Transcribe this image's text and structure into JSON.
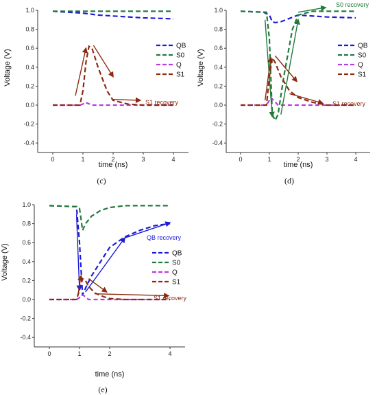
{
  "colors": {
    "QB": "#1c1cd6",
    "S0": "#1f7a3a",
    "Q": "#b43ce0",
    "S1": "#8b2a10"
  },
  "chart_data": [
    {
      "type": "line",
      "caption": "(c)",
      "xlabel": "time (ns)",
      "ylabel": "Voltage (V)",
      "xlim": [
        -0.5,
        4.5
      ],
      "ylim": [
        -0.5,
        1.0
      ],
      "xticks": [
        "0",
        "1",
        "2",
        "3",
        "4"
      ],
      "yticks": [
        "-0.4",
        "-0.2",
        "0.0",
        "0.2",
        "0.4",
        "0.6",
        "0.8",
        "1.0"
      ],
      "grid": false,
      "legend_position": "right",
      "legend": [
        "QB",
        "S0",
        "Q",
        "S1"
      ],
      "series": [
        {
          "name": "QB",
          "x": [
            0,
            0.5,
            1.0,
            1.5,
            2.0,
            3.0,
            4.0
          ],
          "y": [
            0.99,
            0.98,
            0.97,
            0.95,
            0.94,
            0.92,
            0.91
          ]
        },
        {
          "name": "S0",
          "x": [
            0,
            1.0,
            2.0,
            3.0,
            4.0
          ],
          "y": [
            0.99,
            0.99,
            0.99,
            0.99,
            0.99
          ]
        },
        {
          "name": "Q",
          "x": [
            0,
            0.9,
            1.0,
            1.05,
            1.15,
            1.3,
            2.0,
            3.0,
            4.0
          ],
          "y": [
            0.0,
            0.0,
            0.01,
            0.03,
            0.02,
            0.0,
            0.0,
            0.0,
            0.0
          ]
        },
        {
          "name": "S1",
          "x": [
            0,
            0.9,
            1.0,
            1.1,
            1.2,
            1.3,
            1.5,
            1.8,
            2.0,
            2.5,
            3.0,
            4.0
          ],
          "y": [
            0.0,
            0.0,
            0.15,
            0.45,
            0.62,
            0.6,
            0.4,
            0.15,
            0.05,
            0.01,
            0.0,
            0.0
          ]
        }
      ],
      "annotations": [
        {
          "text": "S1 recovery",
          "color": "S1"
        }
      ],
      "arrows": [
        {
          "color": "S1",
          "from": [
            0.75,
            0.1
          ],
          "to": [
            1.1,
            0.6
          ]
        },
        {
          "color": "S1",
          "from": [
            1.35,
            0.63
          ],
          "to": [
            2.0,
            0.3
          ]
        },
        {
          "color": "S1",
          "from": [
            1.95,
            0.06
          ],
          "to": [
            2.9,
            0.05
          ]
        }
      ]
    },
    {
      "type": "line",
      "caption": "(d)",
      "xlabel": "time (ns)",
      "ylabel": "Voltage (V)",
      "xlim": [
        -0.5,
        4.5
      ],
      "ylim": [
        -0.5,
        1.0
      ],
      "xticks": [
        "0",
        "1",
        "2",
        "3",
        "4"
      ],
      "yticks": [
        "-0.4",
        "-0.2",
        "0.0",
        "0.2",
        "0.4",
        "0.6",
        "0.8",
        "1.0"
      ],
      "grid": false,
      "legend_position": "right",
      "legend": [
        "QB",
        "S0",
        "Q",
        "S1"
      ],
      "series": [
        {
          "name": "QB",
          "x": [
            0,
            0.8,
            1.0,
            1.1,
            1.2,
            1.4,
            2.0,
            3.0,
            4.0
          ],
          "y": [
            0.99,
            0.98,
            0.95,
            0.88,
            0.87,
            0.88,
            0.95,
            0.93,
            0.92
          ]
        },
        {
          "name": "S0",
          "x": [
            0,
            0.9,
            1.0,
            1.1,
            1.2,
            1.3,
            1.5,
            1.8,
            2.0,
            2.5,
            3.0,
            4.0
          ],
          "y": [
            0.99,
            0.98,
            0.7,
            -0.1,
            -0.16,
            -0.1,
            0.3,
            0.8,
            0.95,
            0.99,
            0.99,
            0.99
          ]
        },
        {
          "name": "Q",
          "x": [
            0,
            0.9,
            1.0,
            1.05,
            1.15,
            1.3,
            2.0,
            3.0,
            4.0
          ],
          "y": [
            0.0,
            0.0,
            0.05,
            0.08,
            0.05,
            0.0,
            0.0,
            0.0,
            0.0
          ]
        },
        {
          "name": "S1",
          "x": [
            0,
            0.9,
            1.0,
            1.1,
            1.2,
            1.4,
            1.7,
            2.0,
            2.5,
            3.0,
            4.0
          ],
          "y": [
            0.0,
            0.0,
            0.3,
            0.5,
            0.45,
            0.3,
            0.15,
            0.08,
            0.03,
            0.0,
            0.0
          ]
        }
      ],
      "annotations": [
        {
          "text": "S0 recovery",
          "color": "S0"
        },
        {
          "text": "S1 recovery",
          "color": "S1"
        }
      ],
      "arrows": [
        {
          "color": "S0",
          "from": [
            0.85,
            0.9
          ],
          "to": [
            1.1,
            -0.12
          ]
        },
        {
          "color": "S0",
          "from": [
            1.4,
            -0.1
          ],
          "to": [
            2.0,
            0.9
          ]
        },
        {
          "color": "S0",
          "from": [
            2.0,
            0.98
          ],
          "to": [
            2.95,
            1.03
          ]
        },
        {
          "color": "S1",
          "from": [
            0.85,
            0.05
          ],
          "to": [
            1.05,
            0.5
          ]
        },
        {
          "color": "S1",
          "from": [
            1.2,
            0.52
          ],
          "to": [
            1.95,
            0.25
          ]
        },
        {
          "color": "S1",
          "from": [
            1.7,
            0.12
          ],
          "to": [
            2.85,
            0.02
          ]
        }
      ]
    },
    {
      "type": "line",
      "caption": "(e)",
      "xlabel": "time (ns)",
      "ylabel": "Voltage (V)",
      "xlim": [
        -0.5,
        4.5
      ],
      "ylim": [
        -0.5,
        1.0
      ],
      "xticks": [
        "0",
        "1",
        "2",
        "4"
      ],
      "yticks": [
        "-0.4",
        "-0.2",
        "0.0",
        "0.2",
        "0.4",
        "0.6",
        "0.8",
        "1.0"
      ],
      "grid": false,
      "legend_position": "right",
      "legend": [
        "QB",
        "S0",
        "Q",
        "S1"
      ],
      "series": [
        {
          "name": "QB",
          "x": [
            0,
            0.9,
            1.0,
            1.1,
            1.2,
            1.4,
            1.7,
            2.0,
            2.5,
            3.0,
            3.5,
            4.0
          ],
          "y": [
            0.99,
            0.98,
            0.6,
            0.05,
            0.12,
            0.25,
            0.4,
            0.55,
            0.66,
            0.73,
            0.78,
            0.8
          ]
        },
        {
          "name": "S0",
          "x": [
            0,
            0.9,
            1.0,
            1.05,
            1.1,
            1.2,
            1.4,
            1.7,
            2.0,
            2.5,
            3.0,
            4.0
          ],
          "y": [
            0.99,
            0.98,
            0.96,
            0.85,
            0.73,
            0.8,
            0.88,
            0.94,
            0.97,
            0.99,
            0.99,
            0.99
          ]
        },
        {
          "name": "Q",
          "x": [
            0,
            0.9,
            1.0,
            1.05,
            1.15,
            1.3,
            2.0,
            3.0,
            4.0
          ],
          "y": [
            0.0,
            0.0,
            0.02,
            0.05,
            0.04,
            0.0,
            0.0,
            0.0,
            0.0
          ]
        },
        {
          "name": "S1",
          "x": [
            0,
            0.9,
            1.0,
            1.1,
            1.2,
            1.3,
            1.5,
            1.8,
            2.0,
            2.5,
            3.0,
            4.0
          ],
          "y": [
            0.0,
            0.0,
            0.1,
            0.22,
            0.2,
            0.14,
            0.07,
            0.03,
            0.01,
            0.0,
            0.0,
            0.0
          ]
        }
      ],
      "annotations": [
        {
          "text": "QB recovery",
          "color": "QB"
        },
        {
          "text": "S1 recovery",
          "color": "S1"
        }
      ],
      "arrows": [
        {
          "color": "QB",
          "from": [
            0.9,
            0.9
          ],
          "to": [
            1.0,
            0.1
          ]
        },
        {
          "color": "QB",
          "from": [
            1.2,
            0.08
          ],
          "to": [
            2.5,
            0.65
          ]
        },
        {
          "color": "QB",
          "from": [
            2.5,
            0.65
          ],
          "to": [
            4.0,
            0.81
          ]
        },
        {
          "color": "S1",
          "from": [
            0.95,
            0.05
          ],
          "to": [
            1.05,
            0.25
          ]
        },
        {
          "color": "S1",
          "from": [
            1.3,
            0.22
          ],
          "to": [
            1.9,
            0.08
          ]
        },
        {
          "color": "S1",
          "from": [
            1.5,
            0.06
          ],
          "to": [
            3.95,
            0.04
          ]
        }
      ]
    }
  ]
}
